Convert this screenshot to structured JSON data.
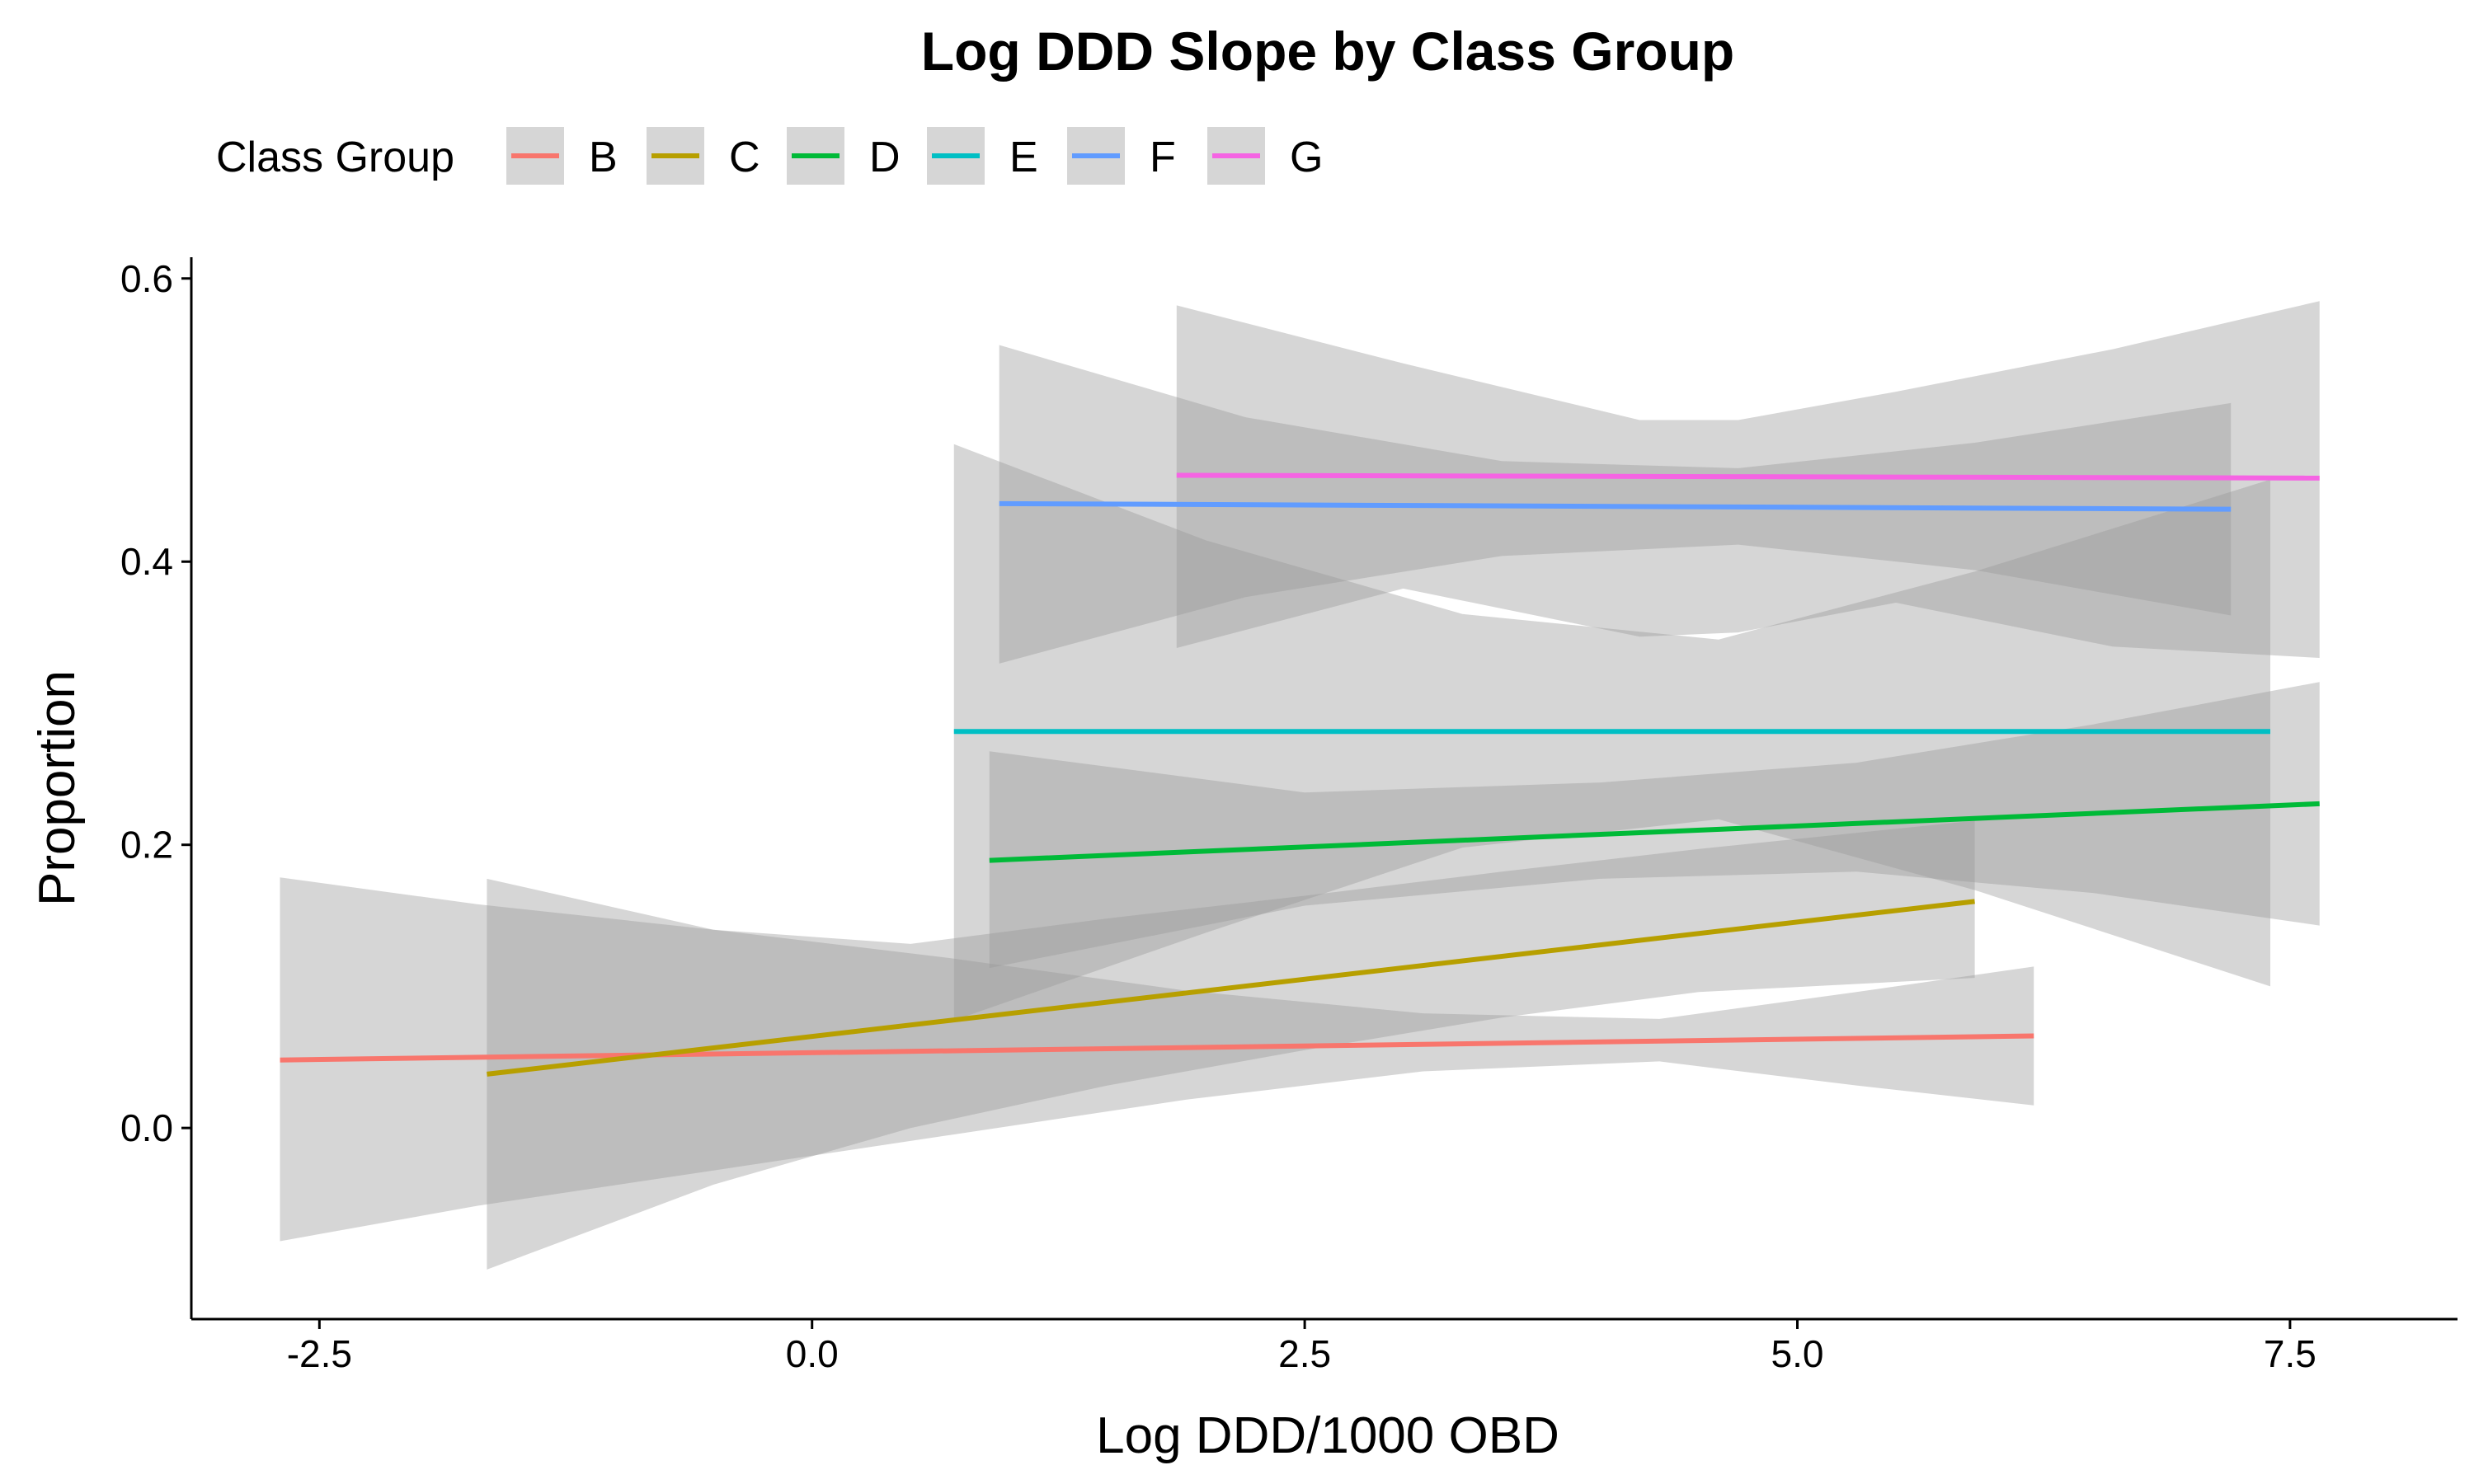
{
  "chart_data": {
    "type": "line",
    "title": "Log DDD Slope by Class Group",
    "xlabel": "Log DDD/1000 OBD",
    "ylabel": "Proportion",
    "legend_title": "Class Group",
    "legend_position": "top",
    "grid": false,
    "xlim": [
      -3.15,
      8.35
    ],
    "ylim": [
      -0.135,
      0.615
    ],
    "x_ticks": [
      {
        "value": -2.5,
        "label": "-2.5"
      },
      {
        "value": 0,
        "label": "0.0"
      },
      {
        "value": 2.5,
        "label": "2.5"
      },
      {
        "value": 5,
        "label": "5.0"
      },
      {
        "value": 7.5,
        "label": "7.5"
      }
    ],
    "y_ticks": [
      {
        "value": 0,
        "label": "0.0"
      },
      {
        "value": 0.2,
        "label": "0.2"
      },
      {
        "value": 0.4,
        "label": "0.4"
      },
      {
        "value": 0.6,
        "label": "0.6"
      }
    ],
    "ribbon_color": "#999999",
    "series": [
      {
        "name": "B",
        "color": "#F8766D",
        "x": [
          -2.7,
          6.2
        ],
        "y": [
          0.048,
          0.065
        ],
        "band_x": [
          -2.7,
          -1.7,
          -0.5,
          0.7,
          1.9,
          3.1,
          4.3,
          5.3,
          6.2
        ],
        "band_lower": [
          -0.08,
          -0.055,
          -0.03,
          -0.005,
          0.02,
          0.04,
          0.047,
          0.03,
          0.016
        ],
        "band_upper": [
          0.177,
          0.158,
          0.14,
          0.12,
          0.097,
          0.081,
          0.077,
          0.096,
          0.114
        ]
      },
      {
        "name": "C",
        "color": "#B79F00",
        "x": [
          -1.65,
          5.9
        ],
        "y": [
          0.038,
          0.16
        ],
        "band_x": [
          -1.65,
          -0.5,
          0.5,
          1.5,
          2.5,
          3.5,
          4.5,
          5.9
        ],
        "band_lower": [
          -0.1,
          -0.04,
          0.0,
          0.03,
          0.055,
          0.078,
          0.096,
          0.106
        ],
        "band_upper": [
          0.176,
          0.14,
          0.13,
          0.148,
          0.164,
          0.181,
          0.197,
          0.217
        ]
      },
      {
        "name": "D",
        "color": "#00BA38",
        "x": [
          0.9,
          7.65
        ],
        "y": [
          0.189,
          0.229
        ],
        "band_x": [
          0.9,
          2.5,
          4.0,
          5.3,
          6.5,
          7.65
        ],
        "band_lower": [
          0.113,
          0.157,
          0.176,
          0.181,
          0.166,
          0.143
        ],
        "band_upper": [
          0.266,
          0.237,
          0.244,
          0.258,
          0.285,
          0.315
        ]
      },
      {
        "name": "E",
        "color": "#00BFC4",
        "x": [
          0.72,
          7.4
        ],
        "y": [
          0.28,
          0.28
        ],
        "band_x": [
          0.72,
          2.0,
          3.3,
          4.6,
          5.9,
          7.4
        ],
        "band_lower": [
          0.076,
          0.138,
          0.198,
          0.218,
          0.168,
          0.1
        ],
        "band_upper": [
          0.483,
          0.415,
          0.363,
          0.345,
          0.393,
          0.458
        ]
      },
      {
        "name": "F",
        "color": "#619CFF",
        "x": [
          0.95,
          7.2
        ],
        "y": [
          0.441,
          0.437
        ],
        "band_x": [
          0.95,
          2.2,
          3.5,
          4.7,
          5.9,
          7.2
        ],
        "band_lower": [
          0.328,
          0.375,
          0.404,
          0.412,
          0.394,
          0.362
        ],
        "band_upper": [
          0.553,
          0.502,
          0.471,
          0.466,
          0.484,
          0.512
        ]
      },
      {
        "name": "G",
        "color": "#F564E3",
        "x": [
          1.85,
          7.65
        ],
        "y": [
          0.461,
          0.459
        ],
        "band_x": [
          1.85,
          3.0,
          4.2,
          4.7,
          5.5,
          6.6,
          7.65
        ],
        "band_lower": [
          0.339,
          0.381,
          0.347,
          0.35,
          0.371,
          0.34,
          0.332
        ],
        "band_upper": [
          0.581,
          0.54,
          0.5,
          0.5,
          0.52,
          0.55,
          0.584
        ]
      }
    ]
  }
}
